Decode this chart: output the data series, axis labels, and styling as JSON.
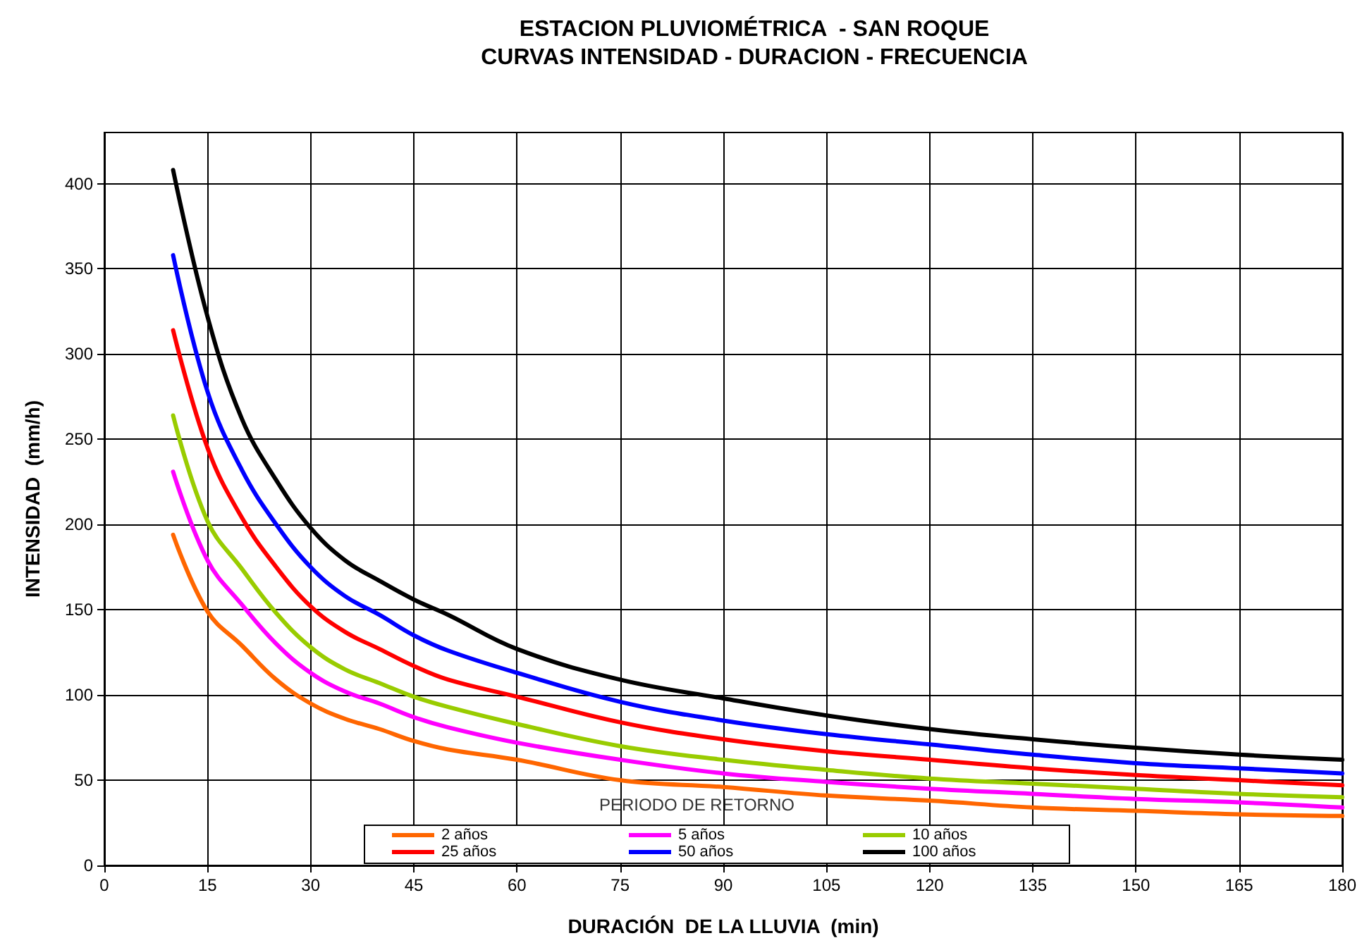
{
  "chart_data": {
    "type": "line",
    "title": "ESTACION PLUVIOMÉTRICA  - SAN ROQUE",
    "subtitle": "CURVAS INTENSIDAD - DURACION - FRECUENCIA",
    "xlabel": "DURACIÓN  DE LA LLUVIA  (min)",
    "ylabel": "INTENSIDAD  (mm/h)",
    "legend_title": "PERIODO DE RETORNO",
    "x": [
      10,
      15,
      20,
      25,
      30,
      35,
      40,
      45,
      50,
      60,
      75,
      90,
      105,
      120,
      135,
      150,
      165,
      180
    ],
    "series": [
      {
        "name": "2 años",
        "color": "#ff6600",
        "values": [
          194,
          149,
          129,
          109,
          95,
          86,
          80,
          73,
          68,
          62,
          50,
          46,
          41,
          38,
          34,
          32,
          30,
          29
        ]
      },
      {
        "name": "5 años",
        "color": "#ff00ff",
        "values": [
          231,
          179,
          153,
          130,
          113,
          102,
          95,
          87,
          81,
          72,
          62,
          54,
          49,
          45,
          42,
          39,
          37,
          34
        ]
      },
      {
        "name": "10 años",
        "color": "#99cc00",
        "values": [
          264,
          202,
          174,
          148,
          128,
          115,
          107,
          99,
          93,
          83,
          70,
          62,
          56,
          51,
          48,
          45,
          42,
          40
        ]
      },
      {
        "name": "25 años",
        "color": "#ff0000",
        "values": [
          314,
          245,
          204,
          175,
          152,
          137,
          127,
          117,
          109,
          99,
          84,
          74,
          67,
          62,
          57,
          53,
          50,
          47
        ]
      },
      {
        "name": "50 años",
        "color": "#0000ff",
        "values": [
          358,
          278,
          232,
          200,
          175,
          158,
          147,
          135,
          126,
          113,
          96,
          85,
          77,
          71,
          65,
          60,
          57,
          54
        ]
      },
      {
        "name": "100 años",
        "color": "#000000",
        "values": [
          408,
          322,
          262,
          226,
          198,
          179,
          167,
          156,
          147,
          127,
          109,
          98,
          88,
          80,
          74,
          69,
          65,
          62
        ]
      }
    ],
    "xlim": [
      0,
      180
    ],
    "xticks": [
      0,
      15,
      30,
      45,
      60,
      75,
      90,
      105,
      120,
      135,
      150,
      165,
      180
    ],
    "ylim": [
      0,
      430
    ],
    "yticks": [
      0,
      50,
      100,
      150,
      200,
      250,
      300,
      350,
      400
    ],
    "grid": true,
    "legend": "bottom",
    "marker": "none",
    "line_style": "solid"
  }
}
